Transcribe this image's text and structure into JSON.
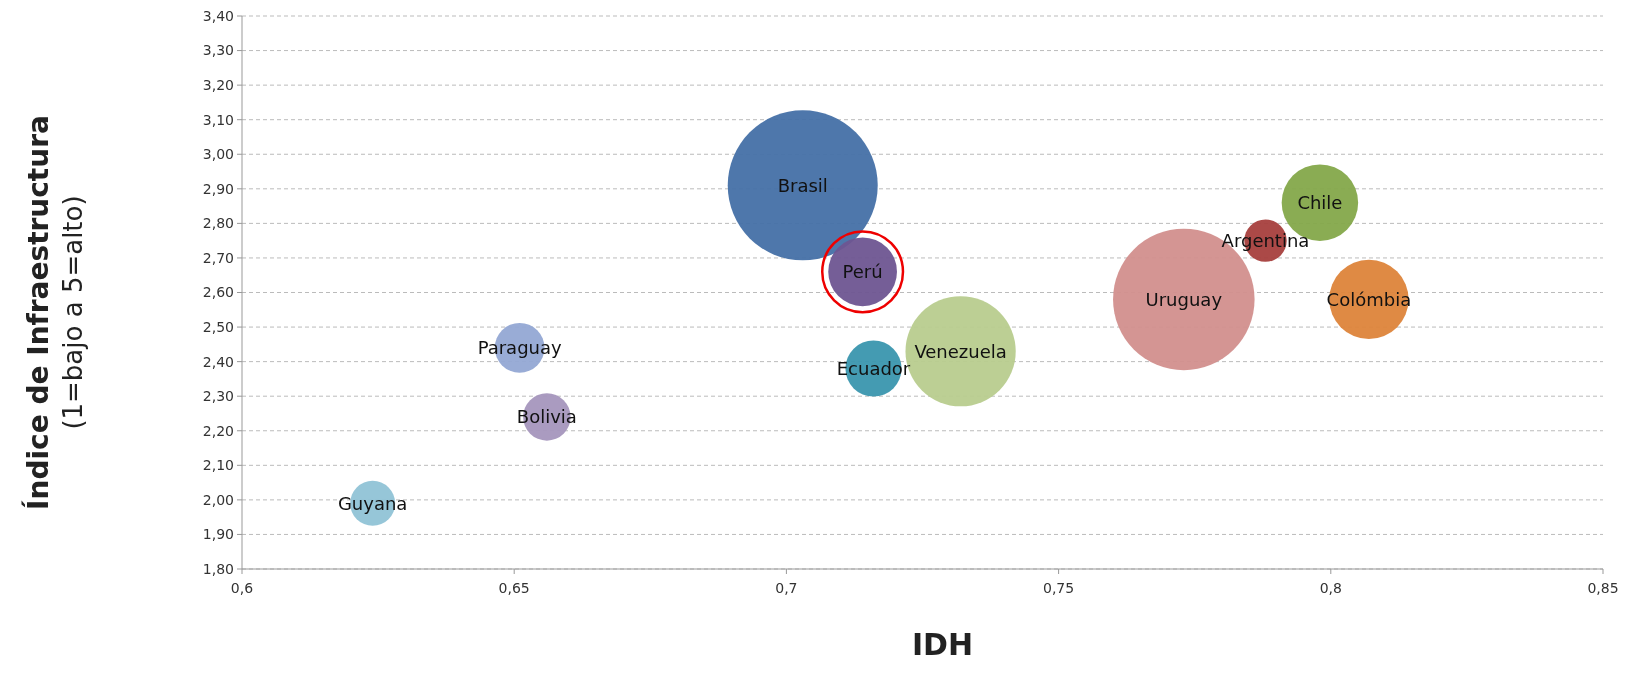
{
  "chart_data": {
    "type": "bubble",
    "xlabel": "IDH",
    "ylabel": "Índice de Infraestructura\n(1=bajo a 5=alto)",
    "xlim": [
      0.6,
      0.85
    ],
    "xticks": [
      {
        "value": 0.6,
        "label": "0,6"
      },
      {
        "value": 0.65,
        "label": "0,65"
      },
      {
        "value": 0.7,
        "label": "0,7"
      },
      {
        "value": 0.75,
        "label": "0,75"
      },
      {
        "value": 0.8,
        "label": "0,8"
      },
      {
        "value": 0.85,
        "label": "0,85"
      }
    ],
    "ylim": [
      1.8,
      3.4
    ],
    "yticks": [
      {
        "value": 1.8,
        "label": "1,80"
      },
      {
        "value": 1.9,
        "label": "1,90"
      },
      {
        "value": 2.0,
        "label": "2,00"
      },
      {
        "value": 2.1,
        "label": "2,10"
      },
      {
        "value": 2.2,
        "label": "2,20"
      },
      {
        "value": 2.3,
        "label": "2,30"
      },
      {
        "value": 2.4,
        "label": "2,40"
      },
      {
        "value": 2.5,
        "label": "2,50"
      },
      {
        "value": 2.6,
        "label": "2,60"
      },
      {
        "value": 2.7,
        "label": "2,70"
      },
      {
        "value": 2.8,
        "label": "2,80"
      },
      {
        "value": 2.9,
        "label": "2,90"
      },
      {
        "value": 3.0,
        "label": "3,00"
      },
      {
        "value": 3.1,
        "label": "3,10"
      },
      {
        "value": 3.2,
        "label": "3,20"
      },
      {
        "value": 3.3,
        "label": "3,30"
      },
      {
        "value": 3.4,
        "label": "3,40"
      }
    ],
    "grid": "y",
    "series": [
      {
        "name": "Brasil",
        "color": "#4470a6",
        "x": [
          0.703
        ],
        "values": [
          2.91
        ],
        "sizes": [
          1
        ]
      },
      {
        "name": "Uruguay",
        "color": "#d28f8d",
        "x": [
          0.773
        ],
        "values": [
          2.58
        ],
        "sizes": [
          0.89
        ]
      },
      {
        "name": "Venezuela",
        "color": "#b8cc8e",
        "x": [
          0.732
        ],
        "values": [
          2.43
        ],
        "sizes": [
          0.54
        ]
      },
      {
        "name": "Perú",
        "color": "#6e5591",
        "x": [
          0.714
        ],
        "values": [
          2.66
        ],
        "sizes": [
          0.21
        ]
      },
      {
        "name": "Chile",
        "color": "#84a84a",
        "x": [
          0.798
        ],
        "values": [
          2.86
        ],
        "sizes": [
          0.26
        ]
      },
      {
        "name": "Argentina",
        "color": "#a63f3d",
        "x": [
          0.788
        ],
        "values": [
          2.75
        ],
        "sizes": [
          0.08
        ]
      },
      {
        "name": "Colómbia",
        "color": "#dd843a",
        "x": [
          0.807
        ],
        "values": [
          2.58
        ],
        "sizes": [
          0.28
        ]
      },
      {
        "name": "Ecuador",
        "color": "#3a96ae",
        "x": [
          0.716
        ],
        "values": [
          2.38
        ],
        "sizes": [
          0.14
        ]
      },
      {
        "name": "Paraguay",
        "color": "#94a8d4",
        "x": [
          0.651
        ],
        "values": [
          2.44
        ],
        "sizes": [
          0.11
        ]
      },
      {
        "name": "Bolivia",
        "color": "#a596bd",
        "x": [
          0.656
        ],
        "values": [
          2.24
        ],
        "sizes": [
          0.1
        ]
      },
      {
        "name": "Guyana",
        "color": "#90c3d6",
        "x": [
          0.624
        ],
        "values": [
          1.99
        ],
        "sizes": [
          0.09
        ]
      }
    ]
  }
}
